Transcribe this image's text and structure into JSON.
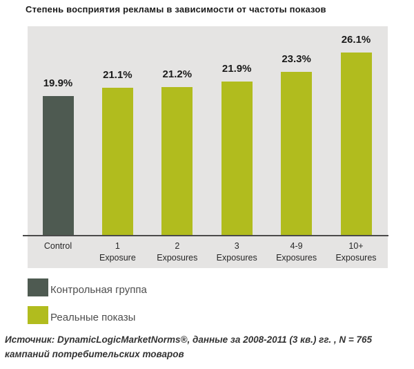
{
  "title": "Степень восприятия рекламы в зависимости от частоты показов",
  "chart_data": {
    "type": "bar",
    "categories": [
      "Control",
      "1 Exposure",
      "2 Exposures",
      "3 Exposures",
      "4-9 Exposures",
      "10+ Exposures"
    ],
    "tick_lines": [
      [
        "Control"
      ],
      [
        "1",
        "Exposure"
      ],
      [
        "2",
        "Exposures"
      ],
      [
        "3",
        "Exposures"
      ],
      [
        "4-9",
        "Exposures"
      ],
      [
        "10+",
        "Exposures"
      ]
    ],
    "values": [
      19.9,
      21.1,
      21.2,
      21.9,
      23.3,
      26.1
    ],
    "value_labels": [
      "19.9%",
      "21.1%",
      "21.2%",
      "21.9%",
      "23.3%",
      "26.1%"
    ],
    "title": "Степень восприятия рекламы в зависимости от частоты показов",
    "xlabel": "",
    "ylabel": "",
    "ylim": [
      0,
      30
    ],
    "grid": false,
    "legend_position": "below-chart-left",
    "colors": {
      "control_bar": "#4e5a51",
      "exposure_bar": "#b1bc1e",
      "plot_background": "#e5e4e3",
      "axis_line": "#4a4a4a",
      "value_label_text": "#1a1a1a"
    }
  },
  "legend": {
    "items": [
      {
        "label": "Контрольная группа",
        "color": "#4e5a51"
      },
      {
        "label": "Реальные показы",
        "color": "#b1bc1e"
      }
    ]
  },
  "source": "Источник: DynamicLogicMarketNorms®, данные за 2008-2011 (3 кв.) гг. , N = 765\nкампаний потребительских товаров"
}
